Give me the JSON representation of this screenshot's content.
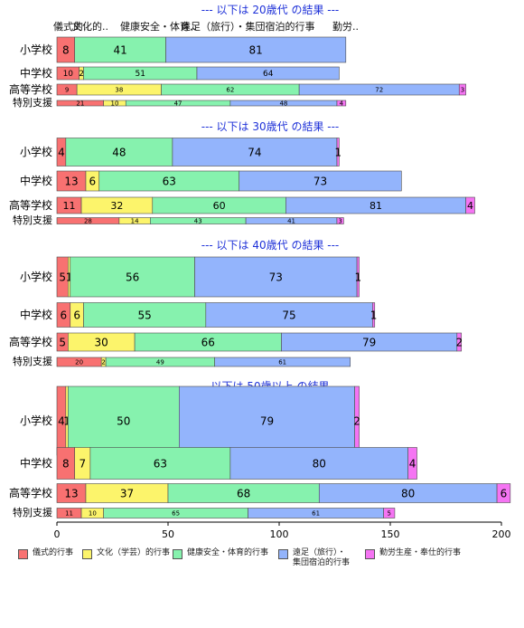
{
  "chart_data": {
    "type": "bar",
    "orientation": "horizontal",
    "stacked": true,
    "xlim": [
      0,
      200
    ],
    "x_ticks": [
      "0",
      "50",
      "100",
      "150",
      "200"
    ],
    "top_header_labels": [
      "儀式的..",
      "文化的..",
      "健康安全・体育..",
      "遠足（旅行）・集団宿泊的行事",
      "勤労.."
    ],
    "series_names": [
      "儀式的行事",
      "文化（学芸）的行事",
      "健康安全・体育的行事",
      "遠足（旅行）・\n集団宿泊的行事",
      "勤労生産・奉仕的行事"
    ],
    "colors": [
      "#f87171",
      "#fcf46b",
      "#86f2ae",
      "#93b4fc",
      "#f574f3"
    ],
    "groups": [
      {
        "title": "--- 以下は 20歳代 の結果 ---",
        "rows": [
          {
            "label": "小学校",
            "values": [
              8,
              0,
              41,
              81,
              0
            ],
            "text": [
              "8",
              "",
              "41",
              "81",
              ""
            ]
          },
          {
            "label": "中学校",
            "values": [
              10,
              2,
              51,
              64,
              0
            ],
            "text": [
              "10",
              "2",
              "51",
              "64",
              ""
            ]
          },
          {
            "label": "高等学校",
            "values": [
              9,
              38,
              62,
              72,
              3
            ],
            "text": [
              "9",
              "38",
              "62",
              "72",
              "3"
            ]
          },
          {
            "label": "特別支援",
            "values": [
              21,
              10,
              47,
              48,
              4
            ],
            "text": [
              "21",
              "10",
              "47",
              "48",
              "4"
            ]
          }
        ]
      },
      {
        "title": "--- 以下は 30歳代 の結果 ---",
        "rows": [
          {
            "label": "小学校",
            "values": [
              4,
              0,
              48,
              74,
              1
            ],
            "text": [
              "4",
              "",
              "48",
              "74",
              "1"
            ]
          },
          {
            "label": "中学校",
            "values": [
              13,
              6,
              63,
              73,
              0
            ],
            "text": [
              "13",
              "6",
              "63",
              "73",
              ""
            ]
          },
          {
            "label": "高等学校",
            "values": [
              11,
              32,
              60,
              81,
              4
            ],
            "text": [
              "11",
              "32",
              "60",
              "81",
              "4"
            ]
          },
          {
            "label": "特別支援",
            "values": [
              28,
              14,
              43,
              41,
              3
            ],
            "text": [
              "28",
              "14",
              "43",
              "41",
              "3"
            ]
          }
        ]
      },
      {
        "title": "--- 以下は 40歳代 の結果 ---",
        "rows": [
          {
            "label": "小学校",
            "values": [
              5,
              1,
              56,
              73,
              1
            ],
            "text": [
              "5",
              "1",
              "56",
              "73",
              "1"
            ]
          },
          {
            "label": "中学校",
            "values": [
              6,
              6,
              55,
              75,
              1
            ],
            "text": [
              "6",
              "6",
              "55",
              "75",
              "1"
            ]
          },
          {
            "label": "高等学校",
            "values": [
              5,
              30,
              66,
              79,
              2
            ],
            "text": [
              "5",
              "30",
              "66",
              "79",
              "2"
            ]
          },
          {
            "label": "特別支援",
            "values": [
              20,
              2,
              49,
              61,
              0
            ],
            "text": [
              "20",
              "2",
              "49",
              "61",
              ""
            ]
          }
        ]
      },
      {
        "title": "--- 以下は 50歳以上 の結果 ---",
        "rows": [
          {
            "label": "小学校",
            "values": [
              4,
              1,
              50,
              79,
              2
            ],
            "text": [
              "4",
              "1",
              "50",
              "79",
              "2"
            ]
          },
          {
            "label": "中学校",
            "values": [
              8,
              7,
              63,
              80,
              4
            ],
            "text": [
              "8",
              "7",
              "63",
              "80",
              "4"
            ]
          },
          {
            "label": "高等学校",
            "values": [
              13,
              37,
              68,
              80,
              6
            ],
            "text": [
              "13",
              "37",
              "68",
              "80",
              "6"
            ]
          },
          {
            "label": "特別支援",
            "values": [
              11,
              10,
              65,
              61,
              5
            ],
            "text": [
              "11",
              "10",
              "65",
              "61",
              "5"
            ]
          }
        ]
      }
    ]
  }
}
